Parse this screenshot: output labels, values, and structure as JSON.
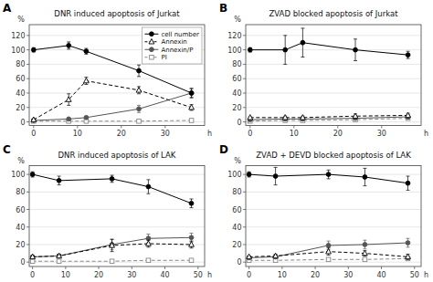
{
  "chart_data": [
    {
      "type": "line",
      "title": "DNR induced apoptosis of Jurkat",
      "x_label": "h",
      "y_label": "%",
      "annotations": [
        "A"
      ],
      "xlim": [
        -1,
        39
      ],
      "ylim": [
        -5,
        135
      ],
      "xticks": [
        0,
        10,
        20,
        30
      ],
      "yticks": [
        0,
        20,
        40,
        60,
        80,
        100,
        120
      ],
      "grid": true,
      "legend": "upper right",
      "series": [
        {
          "name": "cell number",
          "color": "#000000",
          "marker": "circle",
          "line_style": "solid",
          "x": [
            0,
            8,
            12,
            24,
            36
          ],
          "values": [
            100,
            106,
            98,
            71,
            40
          ],
          "errors": [
            3,
            5,
            4,
            8,
            6
          ]
        },
        {
          "name": "Annexin",
          "color": "#000000",
          "marker": "triangle-open",
          "line_style": "dashed",
          "x": [
            0,
            8,
            12,
            24,
            36
          ],
          "values": [
            3,
            31,
            57,
            44,
            20
          ],
          "errors": [
            1,
            8,
            5,
            5,
            4
          ]
        },
        {
          "name": "Annexin/P",
          "color": "#555555",
          "marker": "circle",
          "line_style": "solid",
          "x": [
            0,
            8,
            12,
            24,
            36
          ],
          "values": [
            2,
            4,
            6,
            18,
            40
          ],
          "errors": [
            1,
            1,
            2,
            5,
            7
          ]
        },
        {
          "name": "PI",
          "color": "#888888",
          "marker": "square-open",
          "line_style": "dashed",
          "x": [
            0,
            8,
            12,
            24,
            36
          ],
          "values": [
            1,
            1,
            1,
            1,
            2
          ],
          "errors": [
            0.5,
            0.5,
            0.5,
            0.5,
            1
          ]
        }
      ]
    },
    {
      "type": "line",
      "title": "ZVAD blocked apoptosis of Jurkat",
      "x_label": "h",
      "y_label": "%",
      "annotations": [
        "B"
      ],
      "xlim": [
        -1,
        39
      ],
      "ylim": [
        -5,
        135
      ],
      "xticks": [
        0,
        10,
        20,
        30
      ],
      "yticks": [
        0,
        20,
        40,
        60,
        80,
        100,
        120
      ],
      "grid": true,
      "series": [
        {
          "color": "#000000",
          "marker": "circle",
          "line_style": "solid",
          "x": [
            0,
            8,
            12,
            24,
            36
          ],
          "values": [
            100,
            100,
            110,
            100,
            93
          ],
          "errors": [
            3,
            20,
            20,
            15,
            5
          ]
        },
        {
          "color": "#000000",
          "marker": "triangle-open",
          "line_style": "dashed",
          "x": [
            0,
            8,
            12,
            24,
            36
          ],
          "values": [
            6,
            6,
            6,
            8,
            9
          ],
          "errors": [
            1,
            2,
            2,
            3,
            3
          ]
        },
        {
          "color": "#555555",
          "marker": "circle",
          "line_style": "solid",
          "x": [
            0,
            8,
            12,
            24,
            36
          ],
          "values": [
            3,
            4,
            4,
            5,
            7
          ],
          "errors": [
            1,
            1,
            1,
            2,
            3
          ]
        },
        {
          "color": "#888888",
          "marker": "square-open",
          "line_style": "dashed",
          "x": [
            0,
            8,
            12,
            24,
            36
          ],
          "values": [
            1,
            2,
            2,
            3,
            5
          ],
          "errors": [
            0.5,
            0.5,
            0.5,
            1,
            2
          ]
        }
      ]
    },
    {
      "type": "line",
      "title": "DNR induced apoptosis of LAK",
      "x_label": "h",
      "y_label": "%",
      "annotations": [
        "C"
      ],
      "xlim": [
        -1,
        52
      ],
      "ylim": [
        -5,
        110
      ],
      "xticks": [
        0,
        10,
        20,
        30,
        40,
        50
      ],
      "yticks": [
        0,
        20,
        40,
        60,
        80,
        100
      ],
      "grid": true,
      "series": [
        {
          "color": "#000000",
          "marker": "circle",
          "line_style": "solid",
          "x": [
            0,
            8,
            24,
            35,
            48
          ],
          "values": [
            100,
            93,
            95,
            86,
            67
          ],
          "errors": [
            3,
            5,
            4,
            8,
            5
          ]
        },
        {
          "color": "#000000",
          "marker": "triangle-open",
          "line_style": "dashed",
          "x": [
            0,
            8,
            24,
            35,
            48
          ],
          "values": [
            6,
            7,
            19,
            21,
            20
          ],
          "errors": [
            1,
            2,
            7,
            4,
            4
          ]
        },
        {
          "color": "#555555",
          "marker": "circle",
          "line_style": "solid",
          "x": [
            0,
            8,
            24,
            35,
            48
          ],
          "values": [
            6,
            7,
            20,
            27,
            28
          ],
          "errors": [
            1,
            2,
            6,
            5,
            5
          ]
        },
        {
          "color": "#888888",
          "marker": "square-open",
          "line_style": "dashed",
          "x": [
            0,
            8,
            24,
            35,
            48
          ],
          "values": [
            1,
            1,
            1,
            2,
            2
          ],
          "errors": [
            0.5,
            0.5,
            0.5,
            0.5,
            0.5
          ]
        }
      ]
    },
    {
      "type": "line",
      "title": "ZVAD + DEVD blocked apoptosis of LAK",
      "x_label": "h",
      "y_label": "%",
      "annotations": [
        "D"
      ],
      "xlim": [
        -1,
        52
      ],
      "ylim": [
        -5,
        110
      ],
      "xticks": [
        0,
        10,
        20,
        30,
        40,
        50
      ],
      "yticks": [
        0,
        20,
        40,
        60,
        80,
        100
      ],
      "grid": true,
      "series": [
        {
          "color": "#000000",
          "marker": "circle",
          "line_style": "solid",
          "x": [
            0,
            8,
            24,
            35,
            48
          ],
          "values": [
            100,
            98,
            100,
            97,
            90
          ],
          "errors": [
            3,
            10,
            5,
            10,
            8
          ]
        },
        {
          "color": "#000000",
          "marker": "triangle-open",
          "line_style": "dashed",
          "x": [
            0,
            8,
            24,
            35,
            48
          ],
          "values": [
            6,
            7,
            12,
            10,
            6
          ],
          "errors": [
            1,
            2,
            4,
            3,
            3
          ]
        },
        {
          "color": "#555555",
          "marker": "circle",
          "line_style": "solid",
          "x": [
            0,
            8,
            24,
            35,
            48
          ],
          "values": [
            5,
            6,
            19,
            20,
            22
          ],
          "errors": [
            1,
            2,
            5,
            5,
            5
          ]
        },
        {
          "color": "#888888",
          "marker": "square-open",
          "line_style": "dashed",
          "x": [
            0,
            8,
            24,
            35,
            48
          ],
          "values": [
            2,
            2,
            3,
            3,
            4
          ],
          "errors": [
            0.5,
            0.5,
            1,
            1,
            1
          ]
        }
      ]
    }
  ]
}
